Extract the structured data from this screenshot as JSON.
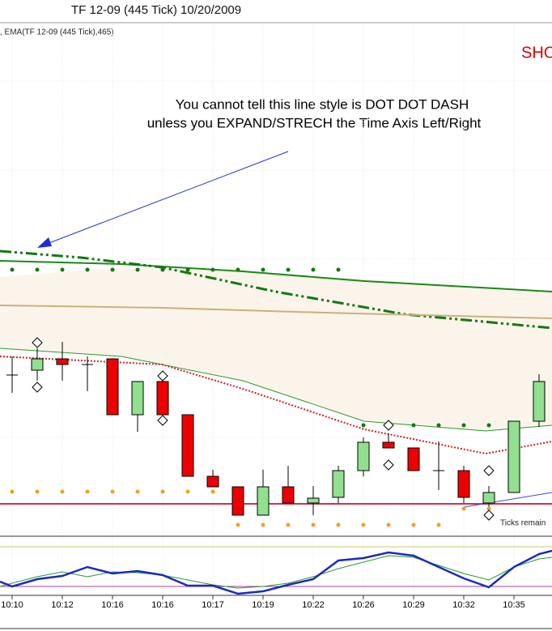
{
  "window": {
    "title": "TF 12-09 (445 Tick)  10/20/2009"
  },
  "panel": {
    "indicator_label": ", EMA(TF 12-09 (445 Tick),465)",
    "signal": "SHO",
    "annotation": [
      "You cannot tell this line style is DOT DOT DASH",
      "unless you EXPAND/STRECH the Time Axis  Left/Right"
    ],
    "status": "Ticks remain"
  },
  "time_axis": [
    "10:10",
    "10:12",
    "10:16",
    "10:16",
    "10:17",
    "10:19",
    "10:22",
    "10:26",
    "10:29",
    "10:32",
    "10:35"
  ]
}
